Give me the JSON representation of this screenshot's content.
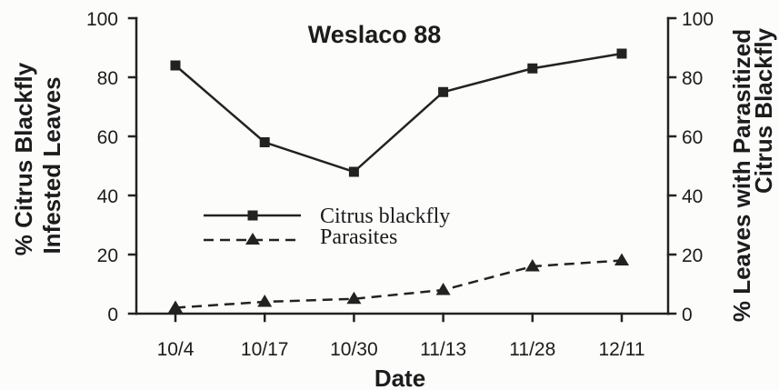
{
  "chart_data": {
    "type": "line",
    "title": "Weslaco 88",
    "xlabel": "Date",
    "ylabel": [
      "% Citrus Blackfly",
      "Infested Leaves"
    ],
    "y2label": [
      "% Leaves with Parasitized",
      "Citrus Blackfly"
    ],
    "categories": [
      "10/4",
      "10/17",
      "10/30",
      "11/13",
      "11/28",
      "12/11"
    ],
    "ylim": [
      0,
      100
    ],
    "y2lim": [
      0,
      100
    ],
    "yticks": [
      0,
      20,
      40,
      60,
      80,
      100
    ],
    "y2ticks": [
      0,
      20,
      40,
      60,
      80,
      100
    ],
    "grid": false,
    "legend_position": "center-left",
    "series": [
      {
        "name": "Citrus blackfly",
        "axis": "left",
        "line_style": "solid",
        "marker": "square",
        "color": "#222222",
        "values": [
          84,
          58,
          48,
          75,
          83,
          88
        ]
      },
      {
        "name": "Parasites",
        "axis": "right",
        "line_style": "dashed",
        "marker": "triangle",
        "color": "#222222",
        "values": [
          2,
          4,
          5,
          8,
          16,
          18
        ]
      }
    ]
  }
}
